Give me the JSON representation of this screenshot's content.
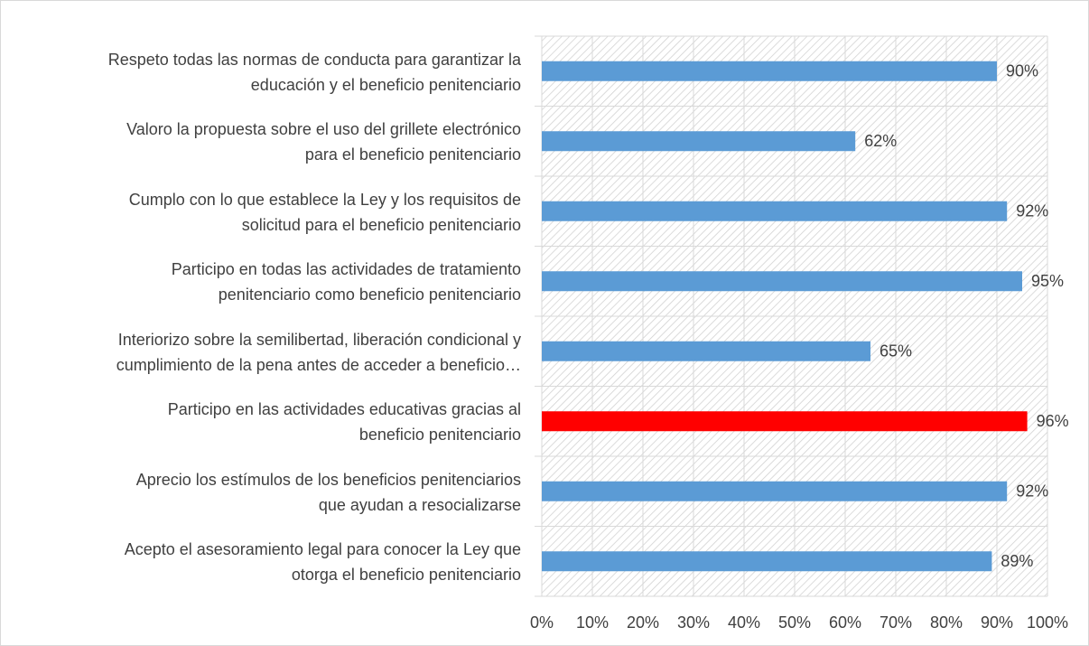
{
  "chart_data": {
    "type": "bar",
    "orientation": "horizontal",
    "categories": [
      "Respeto todas las normas de conducta para garantizar la\neducación y el beneficio penitenciario",
      "Valoro la propuesta sobre el uso del grillete electrónico\npara el beneficio penitenciario",
      "Cumplo con lo que establece la Ley y los requisitos de\nsolicitud para el beneficio penitenciario",
      "Participo en todas las actividades de tratamiento\npenitenciario como beneficio penitenciario",
      "Interiorizo sobre la semilibertad, liberación condicional y\ncumplimiento de la pena antes de acceder a beneficio…",
      "Participo en las actividades educativas gracias al\nbeneficio penitenciario",
      "Aprecio los estímulos de los beneficios penitenciarios\nque ayudan a resocializarse",
      "Acepto el asesoramiento legal para conocer la Ley que\notorga el beneficio penitenciario"
    ],
    "values": [
      90,
      62,
      92,
      95,
      65,
      96,
      92,
      89
    ],
    "value_labels": [
      "90%",
      "62%",
      "92%",
      "95%",
      "65%",
      "96%",
      "92%",
      "89%"
    ],
    "colors": [
      "#5b9bd5",
      "#5b9bd5",
      "#5b9bd5",
      "#5b9bd5",
      "#5b9bd5",
      "#ff0000",
      "#5b9bd5",
      "#5b9bd5"
    ],
    "xlim": [
      0,
      100
    ],
    "xticks": [
      {
        "value": 0,
        "label": "0%"
      },
      {
        "value": 10,
        "label": "10%"
      },
      {
        "value": 20,
        "label": "20%"
      },
      {
        "value": 30,
        "label": "30%"
      },
      {
        "value": 40,
        "label": "40%"
      },
      {
        "value": 50,
        "label": "50%"
      },
      {
        "value": 60,
        "label": "60%"
      },
      {
        "value": 70,
        "label": "70%"
      },
      {
        "value": 80,
        "label": "80%"
      },
      {
        "value": 90,
        "label": "90%"
      },
      {
        "value": 100,
        "label": "100%"
      }
    ],
    "grid": true
  }
}
